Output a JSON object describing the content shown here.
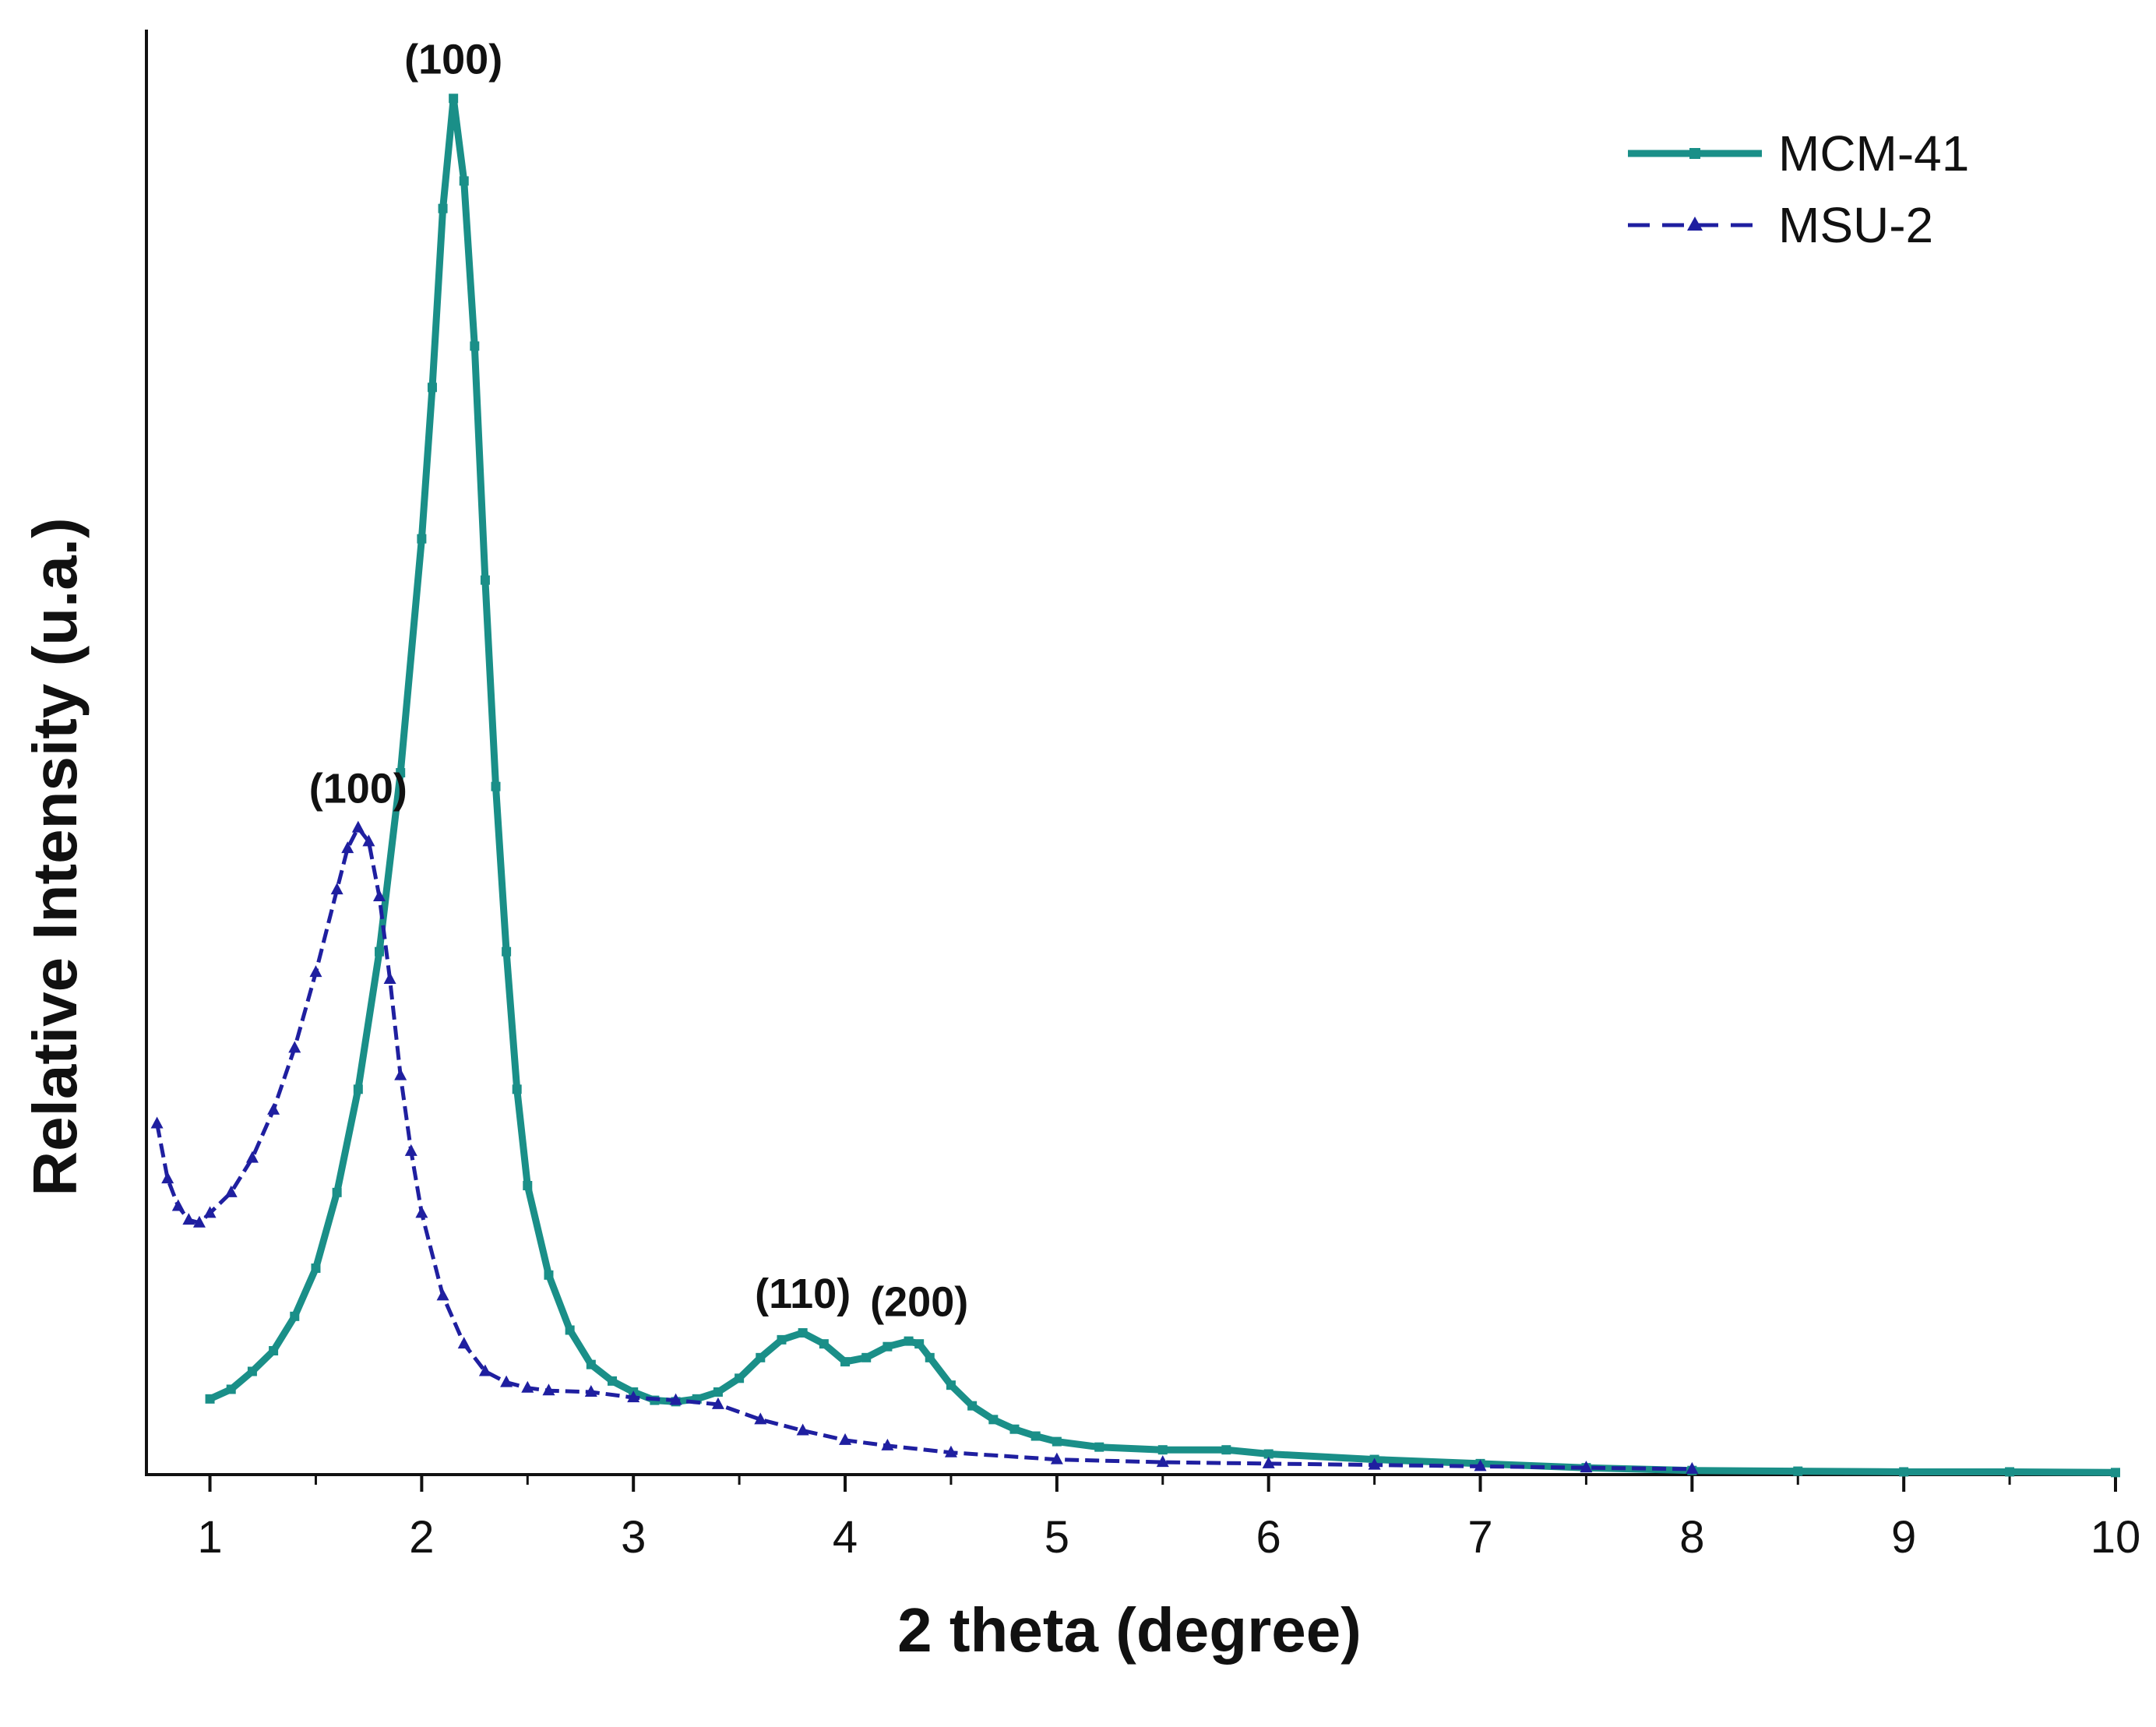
{
  "chart_data": {
    "type": "line",
    "title": "",
    "xlabel": "2 theta (degree)",
    "ylabel": "Relative Intensity (u.a.)",
    "xlim": [
      0.7,
      10
    ],
    "ylim": [
      0,
      105
    ],
    "x_ticks": [
      "1",
      "2",
      "3",
      "4",
      "5",
      "6",
      "7",
      "8",
      "9",
      "10"
    ],
    "legend_position": "top-right",
    "series": [
      {
        "name": "MCM-41",
        "color": "#1a8f88",
        "style": "solid-square-markers",
        "points": [
          [
            1.0,
            5.5
          ],
          [
            1.1,
            6.2
          ],
          [
            1.2,
            7.5
          ],
          [
            1.3,
            9.0
          ],
          [
            1.4,
            11.5
          ],
          [
            1.5,
            15.0
          ],
          [
            1.6,
            20.5
          ],
          [
            1.7,
            28.0
          ],
          [
            1.8,
            38.0
          ],
          [
            1.9,
            51.0
          ],
          [
            2.0,
            68.0
          ],
          [
            2.05,
            79.0
          ],
          [
            2.1,
            92.0
          ],
          [
            2.15,
            100.0
          ],
          [
            2.2,
            94.0
          ],
          [
            2.25,
            82.0
          ],
          [
            2.3,
            65.0
          ],
          [
            2.35,
            50.0
          ],
          [
            2.4,
            38.0
          ],
          [
            2.45,
            28.0
          ],
          [
            2.5,
            21.0
          ],
          [
            2.6,
            14.5
          ],
          [
            2.7,
            10.5
          ],
          [
            2.8,
            8.0
          ],
          [
            2.9,
            6.8
          ],
          [
            3.0,
            6.0
          ],
          [
            3.1,
            5.4
          ],
          [
            3.2,
            5.3
          ],
          [
            3.3,
            5.5
          ],
          [
            3.4,
            6.0
          ],
          [
            3.5,
            7.0
          ],
          [
            3.6,
            8.5
          ],
          [
            3.7,
            9.8
          ],
          [
            3.8,
            10.3
          ],
          [
            3.9,
            9.5
          ],
          [
            4.0,
            8.2
          ],
          [
            4.1,
            8.5
          ],
          [
            4.2,
            9.3
          ],
          [
            4.3,
            9.7
          ],
          [
            4.35,
            9.5
          ],
          [
            4.4,
            8.5
          ],
          [
            4.5,
            6.5
          ],
          [
            4.6,
            5.0
          ],
          [
            4.7,
            4.0
          ],
          [
            4.8,
            3.3
          ],
          [
            4.9,
            2.8
          ],
          [
            5.0,
            2.4
          ],
          [
            5.2,
            2.0
          ],
          [
            5.5,
            1.8
          ],
          [
            5.8,
            1.8
          ],
          [
            6.0,
            1.5
          ],
          [
            6.5,
            1.1
          ],
          [
            7.0,
            0.8
          ],
          [
            7.5,
            0.5
          ],
          [
            8.0,
            0.3
          ],
          [
            8.5,
            0.25
          ],
          [
            9.0,
            0.2
          ],
          [
            9.5,
            0.2
          ],
          [
            10.0,
            0.15
          ]
        ]
      },
      {
        "name": "MSU-2",
        "color": "#1f1fa0",
        "style": "dashed-triangle-markers",
        "points": [
          [
            0.75,
            25.5
          ],
          [
            0.8,
            21.5
          ],
          [
            0.85,
            19.5
          ],
          [
            0.9,
            18.5
          ],
          [
            0.95,
            18.3
          ],
          [
            1.0,
            19.0
          ],
          [
            1.1,
            20.5
          ],
          [
            1.2,
            23.0
          ],
          [
            1.3,
            26.5
          ],
          [
            1.4,
            31.0
          ],
          [
            1.5,
            36.5
          ],
          [
            1.6,
            42.5
          ],
          [
            1.65,
            45.5
          ],
          [
            1.7,
            47.0
          ],
          [
            1.75,
            46.0
          ],
          [
            1.8,
            42.0
          ],
          [
            1.85,
            36.0
          ],
          [
            1.9,
            29.0
          ],
          [
            1.95,
            23.5
          ],
          [
            2.0,
            19.0
          ],
          [
            2.1,
            13.0
          ],
          [
            2.2,
            9.5
          ],
          [
            2.3,
            7.5
          ],
          [
            2.4,
            6.7
          ],
          [
            2.5,
            6.3
          ],
          [
            2.6,
            6.1
          ],
          [
            2.8,
            6.0
          ],
          [
            3.0,
            5.6
          ],
          [
            3.2,
            5.4
          ],
          [
            3.4,
            5.1
          ],
          [
            3.6,
            4.0
          ],
          [
            3.8,
            3.2
          ],
          [
            4.0,
            2.5
          ],
          [
            4.2,
            2.1
          ],
          [
            4.5,
            1.6
          ],
          [
            5.0,
            1.1
          ],
          [
            5.5,
            0.9
          ],
          [
            6.0,
            0.8
          ],
          [
            6.5,
            0.7
          ],
          [
            7.0,
            0.6
          ],
          [
            7.5,
            0.5
          ],
          [
            8.0,
            0.4
          ]
        ]
      }
    ],
    "annotations": [
      {
        "text": "(100)",
        "x": 2.15,
        "y": 100.0,
        "series": "MCM-41"
      },
      {
        "text": "(100)",
        "x": 1.7,
        "y": 47.0,
        "series": "MSU-2"
      },
      {
        "text": "(110)",
        "x": 3.8,
        "y": 10.3,
        "series": "MCM-41"
      },
      {
        "text": "(200)",
        "x": 4.35,
        "y": 9.7,
        "series": "MCM-41"
      }
    ]
  }
}
